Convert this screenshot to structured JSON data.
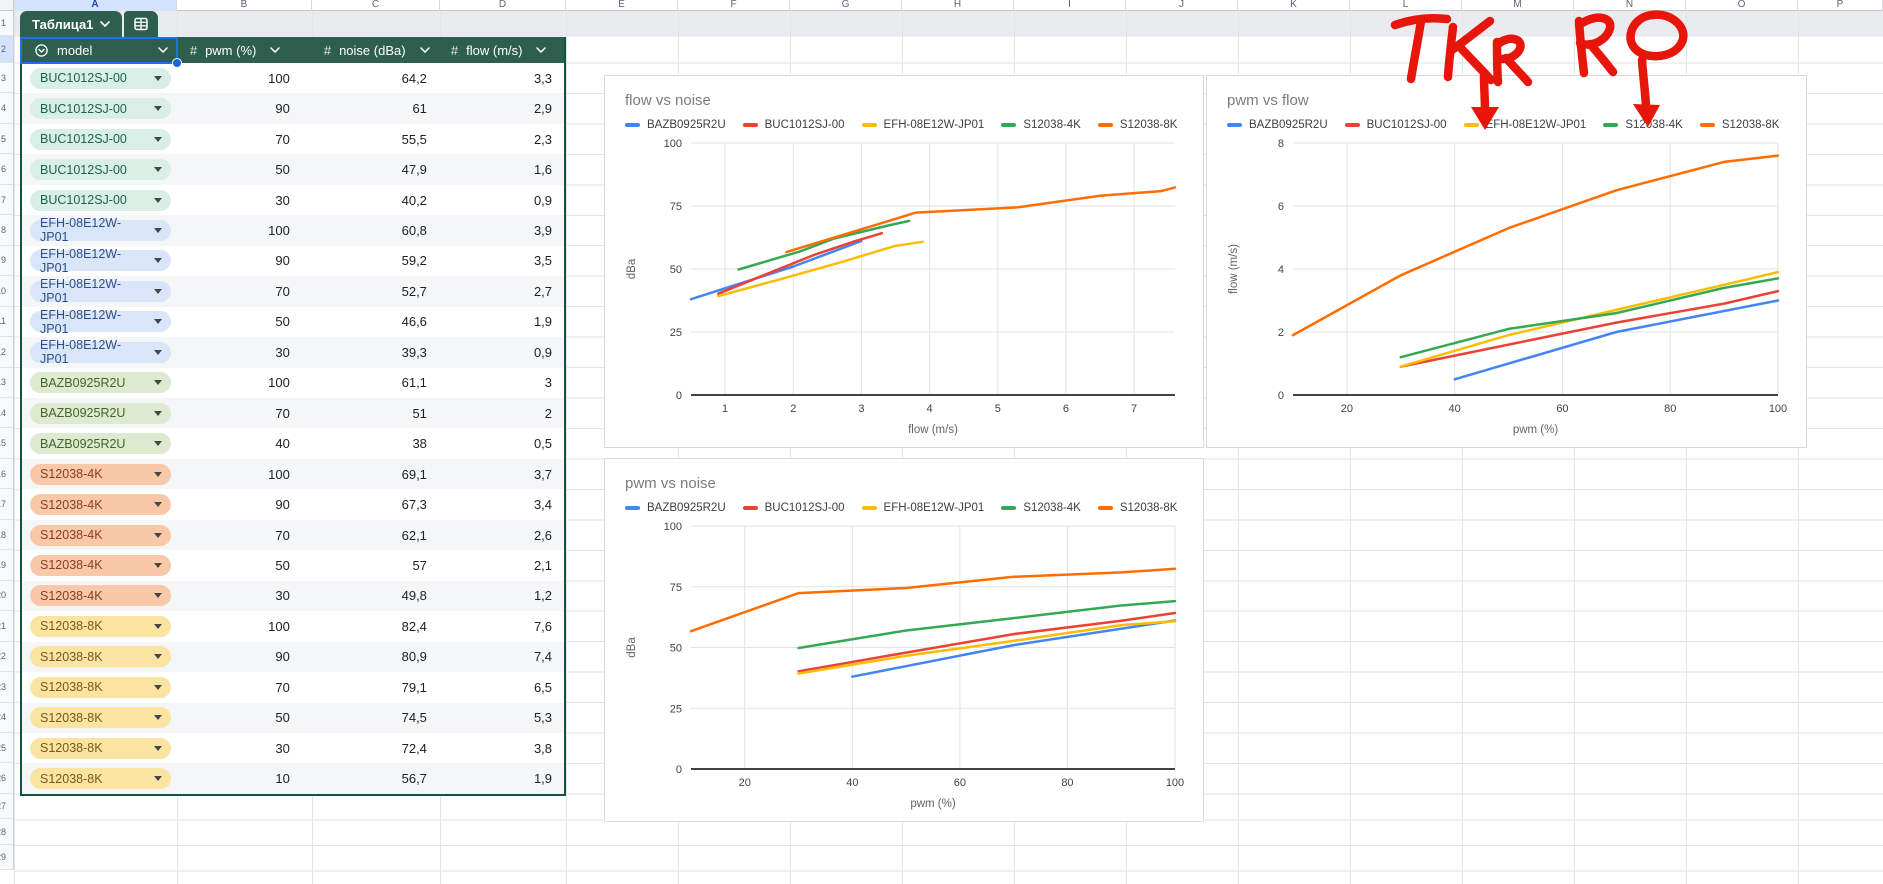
{
  "sheet": {
    "tab_name": "Таблица1",
    "column_letters": [
      "A",
      "B",
      "C",
      "D",
      "E",
      "F",
      "G",
      "H",
      "I",
      "J",
      "K",
      "L",
      "M",
      "N",
      "O",
      "P"
    ],
    "selected_column": "A",
    "selected_cell": "A2"
  },
  "table": {
    "columns": [
      {
        "label": "model",
        "type": "dropdown"
      },
      {
        "label": "pwm (%)",
        "type": "number"
      },
      {
        "label": "noise (dBa)",
        "type": "number"
      },
      {
        "label": "flow (m/s)",
        "type": "number"
      }
    ],
    "model_styles": {
      "BUC1012SJ-00": {
        "bg": "#d9efe6",
        "fg": "#1d6152"
      },
      "EFH-08E12W-JP01": {
        "bg": "#d9e5f8",
        "fg": "#2d4f87"
      },
      "BAZB0925R2U": {
        "bg": "#dcead0",
        "fg": "#44642a"
      },
      "S12038-4K": {
        "bg": "#f8c8a9",
        "fg": "#8a3e1d"
      },
      "S12038-8K": {
        "bg": "#fbe3a2",
        "fg": "#7a5a12"
      }
    },
    "rows": [
      {
        "model": "BUC1012SJ-00",
        "pwm": "100",
        "noise": "64,2",
        "flow": "3,3"
      },
      {
        "model": "BUC1012SJ-00",
        "pwm": "90",
        "noise": "61",
        "flow": "2,9"
      },
      {
        "model": "BUC1012SJ-00",
        "pwm": "70",
        "noise": "55,5",
        "flow": "2,3"
      },
      {
        "model": "BUC1012SJ-00",
        "pwm": "50",
        "noise": "47,9",
        "flow": "1,6"
      },
      {
        "model": "BUC1012SJ-00",
        "pwm": "30",
        "noise": "40,2",
        "flow": "0,9"
      },
      {
        "model": "EFH-08E12W-JP01",
        "pwm": "100",
        "noise": "60,8",
        "flow": "3,9"
      },
      {
        "model": "EFH-08E12W-JP01",
        "pwm": "90",
        "noise": "59,2",
        "flow": "3,5"
      },
      {
        "model": "EFH-08E12W-JP01",
        "pwm": "70",
        "noise": "52,7",
        "flow": "2,7"
      },
      {
        "model": "EFH-08E12W-JP01",
        "pwm": "50",
        "noise": "46,6",
        "flow": "1,9"
      },
      {
        "model": "EFH-08E12W-JP01",
        "pwm": "30",
        "noise": "39,3",
        "flow": "0,9"
      },
      {
        "model": "BAZB0925R2U",
        "pwm": "100",
        "noise": "61,1",
        "flow": "3"
      },
      {
        "model": "BAZB0925R2U",
        "pwm": "70",
        "noise": "51",
        "flow": "2"
      },
      {
        "model": "BAZB0925R2U",
        "pwm": "40",
        "noise": "38",
        "flow": "0,5"
      },
      {
        "model": "S12038-4K",
        "pwm": "100",
        "noise": "69,1",
        "flow": "3,7"
      },
      {
        "model": "S12038-4K",
        "pwm": "90",
        "noise": "67,3",
        "flow": "3,4"
      },
      {
        "model": "S12038-4K",
        "pwm": "70",
        "noise": "62,1",
        "flow": "2,6"
      },
      {
        "model": "S12038-4K",
        "pwm": "50",
        "noise": "57",
        "flow": "2,1"
      },
      {
        "model": "S12038-4K",
        "pwm": "30",
        "noise": "49,8",
        "flow": "1,2"
      },
      {
        "model": "S12038-8K",
        "pwm": "100",
        "noise": "82,4",
        "flow": "7,6"
      },
      {
        "model": "S12038-8K",
        "pwm": "90",
        "noise": "80,9",
        "flow": "7,4"
      },
      {
        "model": "S12038-8K",
        "pwm": "70",
        "noise": "79,1",
        "flow": "6,5"
      },
      {
        "model": "S12038-8K",
        "pwm": "50",
        "noise": "74,5",
        "flow": "5,3"
      },
      {
        "model": "S12038-8K",
        "pwm": "30",
        "noise": "72,4",
        "flow": "3,8"
      },
      {
        "model": "S12038-8K",
        "pwm": "10",
        "noise": "56,7",
        "flow": "1,9"
      }
    ]
  },
  "chart_data": [
    {
      "type": "line",
      "title": "flow vs noise",
      "xlabel": "flow (m/s)",
      "ylabel": "dBa",
      "xlim": [
        0.5,
        7.6
      ],
      "ylim": [
        0,
        100
      ],
      "xticks": [
        1,
        2,
        3,
        4,
        5,
        6,
        7
      ],
      "yticks": [
        0,
        25,
        50,
        75,
        100
      ],
      "grid": true,
      "legend_position": "top",
      "series": [
        {
          "name": "BAZB0925R2U",
          "color": "#4285f4",
          "points": [
            [
              0.5,
              38
            ],
            [
              2,
              51
            ],
            [
              3,
              61.1
            ]
          ]
        },
        {
          "name": "BUC1012SJ-00",
          "color": "#ea4335",
          "points": [
            [
              0.9,
              40.2
            ],
            [
              1.6,
              47.9
            ],
            [
              2.3,
              55.5
            ],
            [
              2.9,
              61
            ],
            [
              3.3,
              64.2
            ]
          ]
        },
        {
          "name": "EFH-08E12W-JP01",
          "color": "#fbbc04",
          "points": [
            [
              0.9,
              39.3
            ],
            [
              1.9,
              46.6
            ],
            [
              2.7,
              52.7
            ],
            [
              3.5,
              59.2
            ],
            [
              3.9,
              60.8
            ]
          ]
        },
        {
          "name": "S12038-4K",
          "color": "#34a853",
          "points": [
            [
              1.2,
              49.8
            ],
            [
              2.1,
              57
            ],
            [
              2.6,
              62.1
            ],
            [
              3.4,
              67.3
            ],
            [
              3.7,
              69.1
            ]
          ]
        },
        {
          "name": "S12038-8K",
          "color": "#ff6d01",
          "points": [
            [
              1.9,
              56.7
            ],
            [
              3.8,
              72.4
            ],
            [
              5.3,
              74.5
            ],
            [
              6.5,
              79.1
            ],
            [
              7.4,
              80.9
            ],
            [
              7.6,
              82.4
            ]
          ]
        }
      ]
    },
    {
      "type": "line",
      "title": "pwm vs flow",
      "xlabel": "pwm (%)",
      "ylabel": "flow (m/s)",
      "xlim": [
        10,
        100
      ],
      "ylim": [
        0,
        8
      ],
      "xticks": [
        20,
        40,
        60,
        80,
        100
      ],
      "yticks": [
        0,
        2,
        4,
        6,
        8
      ],
      "grid": true,
      "legend_position": "top",
      "series": [
        {
          "name": "BAZB0925R2U",
          "color": "#4285f4",
          "points": [
            [
              40,
              0.5
            ],
            [
              70,
              2
            ],
            [
              100,
              3
            ]
          ]
        },
        {
          "name": "BUC1012SJ-00",
          "color": "#ea4335",
          "points": [
            [
              30,
              0.9
            ],
            [
              50,
              1.6
            ],
            [
              70,
              2.3
            ],
            [
              90,
              2.9
            ],
            [
              100,
              3.3
            ]
          ]
        },
        {
          "name": "EFH-08E12W-JP01",
          "color": "#fbbc04",
          "points": [
            [
              30,
              0.9
            ],
            [
              50,
              1.9
            ],
            [
              70,
              2.7
            ],
            [
              90,
              3.5
            ],
            [
              100,
              3.9
            ]
          ]
        },
        {
          "name": "S12038-4K",
          "color": "#34a853",
          "points": [
            [
              30,
              1.2
            ],
            [
              50,
              2.1
            ],
            [
              70,
              2.6
            ],
            [
              90,
              3.4
            ],
            [
              100,
              3.7
            ]
          ]
        },
        {
          "name": "S12038-8K",
          "color": "#ff6d01",
          "points": [
            [
              10,
              1.9
            ],
            [
              30,
              3.8
            ],
            [
              50,
              5.3
            ],
            [
              70,
              6.5
            ],
            [
              90,
              7.4
            ],
            [
              100,
              7.6
            ]
          ]
        }
      ]
    },
    {
      "type": "line",
      "title": "pwm vs noise",
      "xlabel": "pwm (%)",
      "ylabel": "dBa",
      "xlim": [
        10,
        100
      ],
      "ylim": [
        0,
        100
      ],
      "xticks": [
        20,
        40,
        60,
        80,
        100
      ],
      "yticks": [
        0,
        25,
        50,
        75,
        100
      ],
      "grid": true,
      "legend_position": "top",
      "series": [
        {
          "name": "BAZB0925R2U",
          "color": "#4285f4",
          "points": [
            [
              40,
              38
            ],
            [
              70,
              51
            ],
            [
              100,
              61.1
            ]
          ]
        },
        {
          "name": "BUC1012SJ-00",
          "color": "#ea4335",
          "points": [
            [
              30,
              40.2
            ],
            [
              50,
              47.9
            ],
            [
              70,
              55.5
            ],
            [
              90,
              61
            ],
            [
              100,
              64.2
            ]
          ]
        },
        {
          "name": "EFH-08E12W-JP01",
          "color": "#fbbc04",
          "points": [
            [
              30,
              39.3
            ],
            [
              50,
              46.6
            ],
            [
              70,
              52.7
            ],
            [
              90,
              59.2
            ],
            [
              100,
              60.8
            ]
          ]
        },
        {
          "name": "S12038-4K",
          "color": "#34a853",
          "points": [
            [
              30,
              49.8
            ],
            [
              50,
              57
            ],
            [
              70,
              62.1
            ],
            [
              90,
              67.3
            ],
            [
              100,
              69.1
            ]
          ]
        },
        {
          "name": "S12038-8K",
          "color": "#ff6d01",
          "points": [
            [
              10,
              56.7
            ],
            [
              30,
              72.4
            ],
            [
              50,
              74.5
            ],
            [
              70,
              79.1
            ],
            [
              90,
              80.9
            ],
            [
              100,
              82.4
            ]
          ]
        }
      ]
    }
  ],
  "annotations": {
    "color": "#e8150b",
    "items": [
      {
        "text": "TKR",
        "arrow": "down",
        "target": "EFH-08E12W-JP01"
      },
      {
        "text": "RO",
        "arrow": "down",
        "target": "S12038-4K"
      }
    ]
  }
}
